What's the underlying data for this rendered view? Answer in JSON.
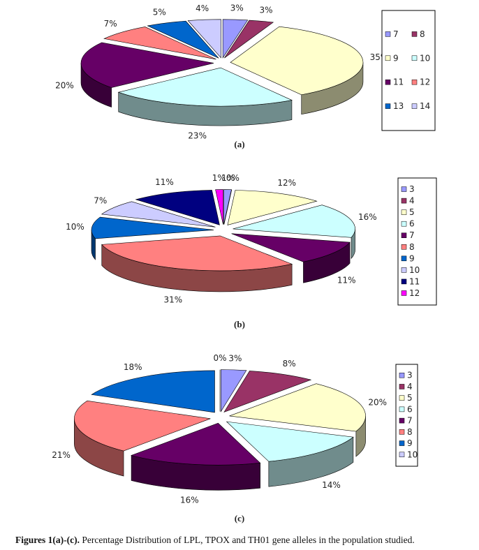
{
  "chart_data": [
    {
      "type": "pie",
      "label": "(a)",
      "categories": [
        "7",
        "8",
        "9",
        "10",
        "11",
        "12",
        "13",
        "14"
      ],
      "values": [
        3,
        3,
        35,
        23,
        20,
        7,
        5,
        4
      ],
      "value_labels": [
        "3%",
        "3%",
        "35%",
        "23%",
        "20%",
        "7%",
        "5%",
        "4%"
      ],
      "colors": [
        "#9999ff",
        "#993366",
        "#ffffcc",
        "#ccffff",
        "#660066",
        "#ff8080",
        "#0066cc",
        "#ccccff"
      ],
      "legend": "right"
    },
    {
      "type": "pie",
      "label": "(b)",
      "categories": [
        "3",
        "4",
        "5",
        "6",
        "7",
        "8",
        "9",
        "10",
        "11",
        "12"
      ],
      "values": [
        1,
        0,
        12,
        16,
        11,
        31,
        10,
        7,
        11,
        1
      ],
      "value_labels": [
        "1%",
        "0%",
        "12%",
        "16%",
        "11%",
        "31%",
        "10%",
        "7%",
        "11%",
        "1%"
      ],
      "colors": [
        "#9999ff",
        "#993366",
        "#ffffcc",
        "#ccffff",
        "#660066",
        "#ff8080",
        "#0066cc",
        "#ccccff",
        "#000080",
        "#ff00ff"
      ],
      "legend": "right"
    },
    {
      "type": "pie",
      "label": "(c)",
      "categories": [
        "3",
        "4",
        "5",
        "6",
        "7",
        "8",
        "9",
        "10"
      ],
      "values": [
        3,
        8,
        20,
        14,
        16,
        21,
        18,
        0
      ],
      "value_labels": [
        "3%",
        "8%",
        "20%",
        "14%",
        "16%",
        "21%",
        "18%",
        "0%"
      ],
      "colors": [
        "#9999ff",
        "#993366",
        "#ffffcc",
        "#ccffff",
        "#660066",
        "#ff8080",
        "#0066cc",
        "#ccccff"
      ],
      "legend": "right"
    }
  ],
  "caption": {
    "label": "Figures 1(a)-(c).",
    "text": "Percentage Distribution of LPL, TPOX and TH01 gene alleles in the population studied."
  }
}
